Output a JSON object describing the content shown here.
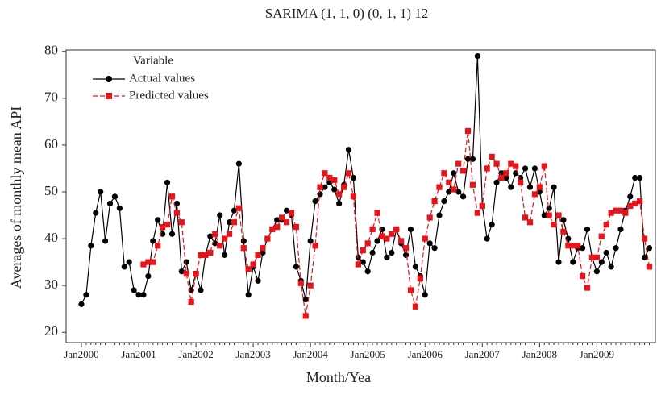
{
  "chart_data": {
    "type": "line",
    "title": "SARIMA (1, 1, 0) (0, 1, 1) 12",
    "x_label": "Month/Yea",
    "y_label": "Averages of monthly mean API",
    "legend_title": "Variable",
    "legend_position": "top-left",
    "categories": [
      "Jan2000",
      null,
      null,
      null,
      null,
      null,
      null,
      null,
      null,
      null,
      null,
      null,
      "Jan2001",
      null,
      null,
      null,
      null,
      null,
      null,
      null,
      null,
      null,
      null,
      null,
      "Jan2002",
      null,
      null,
      null,
      null,
      null,
      null,
      null,
      null,
      null,
      null,
      null,
      "Jan2003",
      null,
      null,
      null,
      null,
      null,
      null,
      null,
      null,
      null,
      null,
      null,
      "Jan2004",
      null,
      null,
      null,
      null,
      null,
      null,
      null,
      null,
      null,
      null,
      null,
      "Jan2005",
      null,
      null,
      null,
      null,
      null,
      null,
      null,
      null,
      null,
      null,
      null,
      "Jan2006",
      null,
      null,
      null,
      null,
      null,
      null,
      null,
      null,
      null,
      null,
      null,
      "Jan2007",
      null,
      null,
      null,
      null,
      null,
      null,
      null,
      null,
      null,
      null,
      null,
      "Jan2008",
      null,
      null,
      null,
      null,
      null,
      null,
      null,
      null,
      null,
      null,
      null,
      "Jan2009",
      null,
      null,
      null,
      null,
      null,
      null,
      null,
      null,
      null,
      null,
      null
    ],
    "series": [
      {
        "name": "Actual values",
        "color": "#000000",
        "marker": "circle",
        "dashed": false,
        "values": [
          26,
          28,
          38.5,
          45.5,
          50,
          39.5,
          47.5,
          49,
          46.5,
          34,
          35,
          29,
          28,
          28,
          32,
          39.5,
          44,
          41,
          52,
          41,
          47.5,
          33,
          35,
          29,
          32.5,
          29,
          36.5,
          40.5,
          39,
          45,
          36.5,
          43.5,
          46,
          56,
          39.5,
          28,
          34,
          31,
          37,
          40,
          42,
          44,
          44,
          46,
          45,
          34,
          31,
          27,
          39.5,
          48,
          49.5,
          51,
          52,
          50.5,
          47.5,
          51.5,
          59,
          53,
          36,
          35,
          33,
          37,
          39.5,
          42,
          36,
          37,
          42,
          39,
          36.5,
          42,
          34,
          32,
          28,
          39,
          38,
          45,
          48,
          50,
          54,
          50,
          49,
          57,
          57,
          79,
          47,
          40,
          43,
          52,
          54,
          53,
          51,
          54,
          53,
          55,
          51,
          55,
          50,
          45,
          46.5,
          51,
          35,
          44,
          40,
          35,
          38,
          38,
          42,
          36,
          33,
          35,
          37,
          34,
          38,
          42,
          46,
          49,
          53,
          53,
          36,
          38
        ]
      },
      {
        "name": "Predicted values",
        "color": "#e8141c",
        "marker": "square",
        "dashed": true,
        "values": [
          null,
          null,
          null,
          null,
          null,
          null,
          null,
          null,
          null,
          null,
          null,
          null,
          null,
          34.5,
          35,
          35,
          38.5,
          42.5,
          43,
          49,
          45.5,
          43.5,
          32.5,
          26.5,
          32.5,
          36.5,
          36.5,
          37,
          41,
          38.5,
          40,
          41,
          43.5,
          46.5,
          38,
          33.5,
          34.5,
          36.5,
          38,
          40,
          42,
          42.5,
          44.5,
          43.5,
          45.5,
          42.5,
          30.5,
          23.5,
          30,
          38.5,
          51,
          54,
          53,
          52.5,
          49.5,
          51,
          54,
          49,
          34.5,
          37.5,
          39,
          42,
          45.5,
          40.5,
          40,
          41,
          42,
          39.5,
          38,
          29,
          25.5,
          31.5,
          40,
          44.5,
          48,
          51,
          54,
          52,
          50.5,
          56,
          54.5,
          63,
          51.5,
          45.5,
          47,
          55,
          57.5,
          56,
          53,
          54,
          56,
          55.5,
          52,
          44.5,
          43.5,
          49.5,
          51,
          55.5,
          45,
          43,
          45,
          41.5,
          38.5,
          38.5,
          38.5,
          32,
          29.5,
          36,
          36,
          40.5,
          43,
          45.5,
          46,
          46,
          45.5,
          47,
          47.5,
          48,
          40,
          34
        ]
      }
    ],
    "ylim": [
      17.8,
      80.3
    ],
    "yticks": [
      20,
      30,
      40,
      50,
      60,
      70,
      80
    ]
  }
}
